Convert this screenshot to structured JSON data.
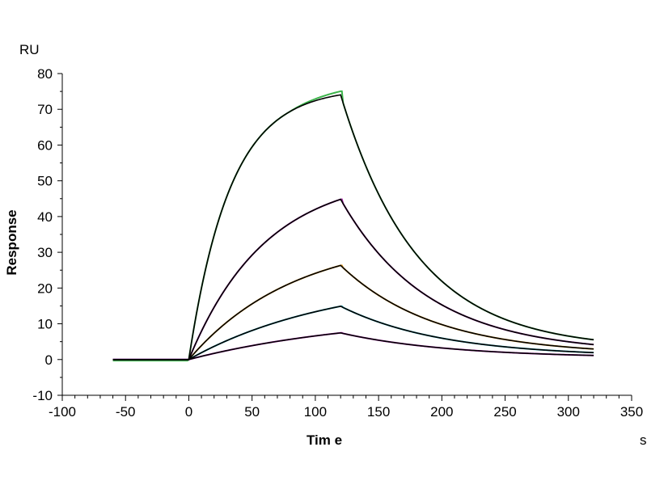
{
  "chart_data": {
    "type": "line",
    "title": "",
    "xlabel": "Tim e",
    "ylabel": "Response",
    "x_unit": "s",
    "y_unit": "RU",
    "xlim": [
      -100,
      350
    ],
    "ylim": [
      -10,
      80
    ],
    "x_ticks": [
      -100,
      -50,
      0,
      50,
      100,
      150,
      200,
      250,
      300,
      350
    ],
    "y_ticks": [
      -10,
      0,
      10,
      20,
      30,
      40,
      50,
      60,
      70,
      80
    ],
    "grid": false,
    "legend": "none",
    "injection_start": 0,
    "injection_end": 120,
    "x_end": 320,
    "series": [
      {
        "color": "#3cb44b",
        "fit_color": "#000000",
        "start": -0.3,
        "rmax": 76,
        "ka_obs": 0.0305,
        "kd": 0.0165,
        "end_val": 5.3,
        "assoc_drift": 0.025
      },
      {
        "color": "#a020a0",
        "fit_color": "#000000",
        "start": 0,
        "rmax": 52,
        "ka_obs": 0.0165,
        "kd": 0.0145,
        "end_val": 3.3,
        "assoc_drift": 0
      },
      {
        "color": "#e6a020",
        "fit_color": "#000000",
        "start": 0,
        "rmax": 34.5,
        "ka_obs": 0.012,
        "kd": 0.0135,
        "end_val": 2.3,
        "assoc_drift": 0
      },
      {
        "color": "#20b0c0",
        "fit_color": "#000000",
        "start": 0,
        "rmax": 23,
        "ka_obs": 0.0087,
        "kd": 0.0125,
        "end_val": 1.4,
        "assoc_drift": 0
      },
      {
        "color": "#c020c0",
        "fit_color": "#000000",
        "start": 0,
        "rmax": 13,
        "ka_obs": 0.0071,
        "kd": 0.0115,
        "end_val": 0.8,
        "assoc_drift": 0
      }
    ]
  }
}
